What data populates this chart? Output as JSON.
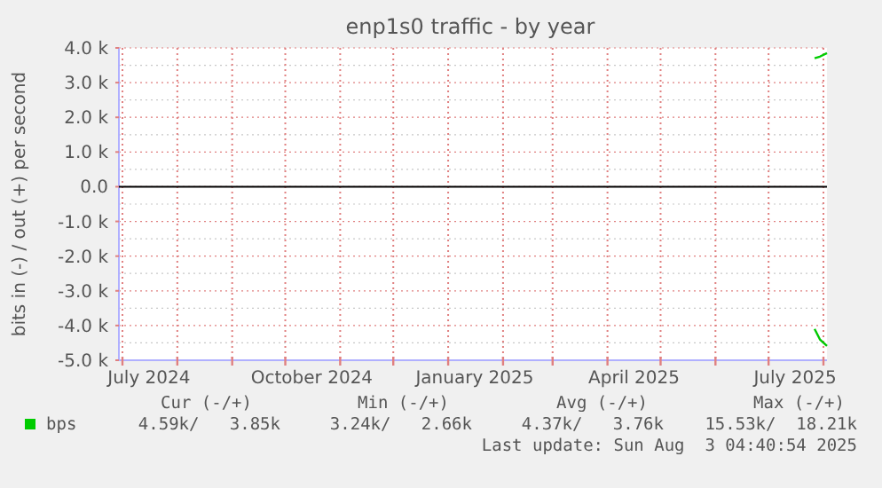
{
  "chart_data": {
    "type": "line",
    "title": "enp1s0 traffic - by year",
    "ylabel": "bits in (-) / out (+) per second",
    "xlim": [
      "2024-06-29",
      "2025-08-03"
    ],
    "xticks": [
      {
        "value": "2024-07-01",
        "label": null
      },
      {
        "value": "2024-07-16",
        "label": "July 2024"
      },
      {
        "value": "2024-08-01",
        "label": null
      },
      {
        "value": "2024-09-01",
        "label": null
      },
      {
        "value": "2024-10-01",
        "label": null
      },
      {
        "value": "2024-10-16",
        "label": "October 2024"
      },
      {
        "value": "2024-11-01",
        "label": null
      },
      {
        "value": "2024-12-01",
        "label": null
      },
      {
        "value": "2025-01-01",
        "label": null
      },
      {
        "value": "2025-01-16",
        "label": "January 2025"
      },
      {
        "value": "2025-02-01",
        "label": null
      },
      {
        "value": "2025-03-01",
        "label": null
      },
      {
        "value": "2025-04-01",
        "label": null
      },
      {
        "value": "2025-04-16",
        "label": "April 2025"
      },
      {
        "value": "2025-05-01",
        "label": null
      },
      {
        "value": "2025-06-01",
        "label": null
      },
      {
        "value": "2025-07-01",
        "label": null
      },
      {
        "value": "2025-07-16",
        "label": "July 2025"
      },
      {
        "value": "2025-08-01",
        "label": null
      }
    ],
    "ylim": [
      -5,
      4
    ],
    "yticks": [
      {
        "value": -5,
        "label": "-5.0 k"
      },
      {
        "value": -4,
        "label": "-4.0 k"
      },
      {
        "value": -3,
        "label": "-3.0 k"
      },
      {
        "value": -2,
        "label": "-2.0 k"
      },
      {
        "value": -1,
        "label": "-1.0 k"
      },
      {
        "value": 0,
        "label": "0.0"
      },
      {
        "value": 1,
        "label": "1.0 k"
      },
      {
        "value": 2,
        "label": "2.0 k"
      },
      {
        "value": 3,
        "label": "3.0 k"
      },
      {
        "value": 4,
        "label": "4.0 k"
      }
    ],
    "grid": true,
    "legend": "bottom left",
    "marker": "none",
    "line_style": "solid",
    "ref_lines": [
      {
        "axis": "y",
        "value": 0,
        "color": "#000000"
      }
    ],
    "series": [
      {
        "name": "bps",
        "color": "#00cc00",
        "x": [
          "2025-07-27",
          "2025-07-30",
          "2025-08-03"
        ],
        "values": [
          3.7,
          3.75,
          3.85
        ]
      },
      {
        "color": "#00c800",
        "x": [
          "2025-07-27",
          "2025-07-30",
          "2025-08-03"
        ],
        "values": [
          -4.1,
          -4.4,
          -4.59
        ]
      }
    ],
    "annotations": [
      "Cur (-/+)",
      "Min (-/+)",
      "Avg (-/+)",
      "Max (-/+)",
      "4.59k/   3.85k",
      "3.24k/   2.66k",
      "4.37k/   3.76k",
      "15.53k/  18.21k",
      "Last update: Sun Aug  3 04:40:54 2025"
    ]
  }
}
